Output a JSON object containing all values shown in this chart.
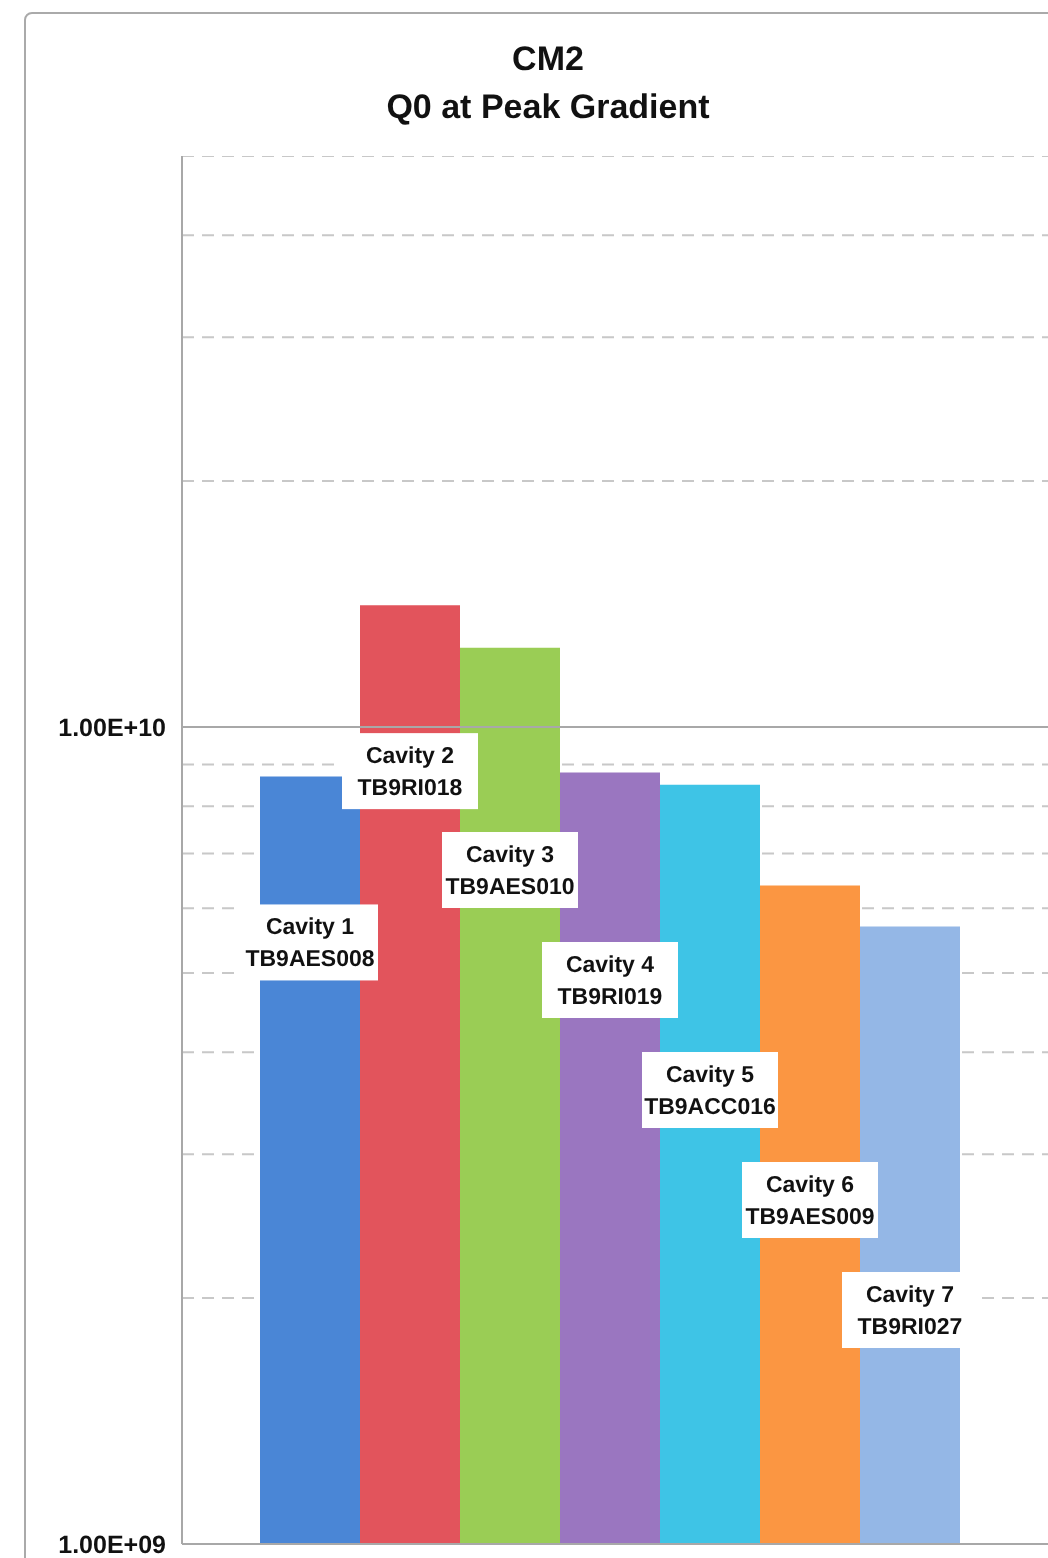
{
  "chart_data": {
    "type": "bar",
    "title": "CM2\nQ0 at Peak Gradient",
    "categories": [
      "Cavity 1\nTB9AES008",
      "Cavity 2\nTB9RI018",
      "Cavity 3\nTB9AES010",
      "Cavity 4\nTB9RI019",
      "Cavity 5\nTB9ACC016",
      "Cavity 6\nTB9AES009",
      "Cavity 7\nTB9RI027"
    ],
    "values": [
      8700000000.0,
      14100000000.0,
      12500000000.0,
      8800000000.0,
      8500000000.0,
      6400000000.0,
      5700000000.0
    ],
    "colors": [
      "#4a86d6",
      "#e2545c",
      "#9acd55",
      "#9a76c0",
      "#3ec4e6",
      "#fb9642",
      "#94b7e6"
    ],
    "log": "y",
    "ylim": [
      1000000000.0,
      50000000000.0
    ],
    "yticks": [
      {
        "value": 1000000000.0,
        "label": "1.00E+09"
      },
      {
        "value": 2000000000.0,
        "label": null
      },
      {
        "value": 3000000000.0,
        "label": null
      },
      {
        "value": 4000000000.0,
        "label": null
      },
      {
        "value": 5000000000.0,
        "label": null
      },
      {
        "value": 6000000000.0,
        "label": null
      },
      {
        "value": 7000000000.0,
        "label": null
      },
      {
        "value": 8000000000.0,
        "label": null
      },
      {
        "value": 9000000000.0,
        "label": null
      },
      {
        "value": 10000000000.0,
        "label": "1.00E+10"
      },
      {
        "value": 20000000000.0,
        "label": null
      },
      {
        "value": 30000000000.0,
        "label": null
      },
      {
        "value": 40000000000.0,
        "label": null
      },
      {
        "value": 50000000000.0,
        "label": null
      }
    ],
    "ref_lines": [
      {
        "axis": "y",
        "value": 10000000000.0,
        "color": "#a8a8a8",
        "line_style": "solid"
      }
    ],
    "grid": "y",
    "tick_labels": "y"
  }
}
